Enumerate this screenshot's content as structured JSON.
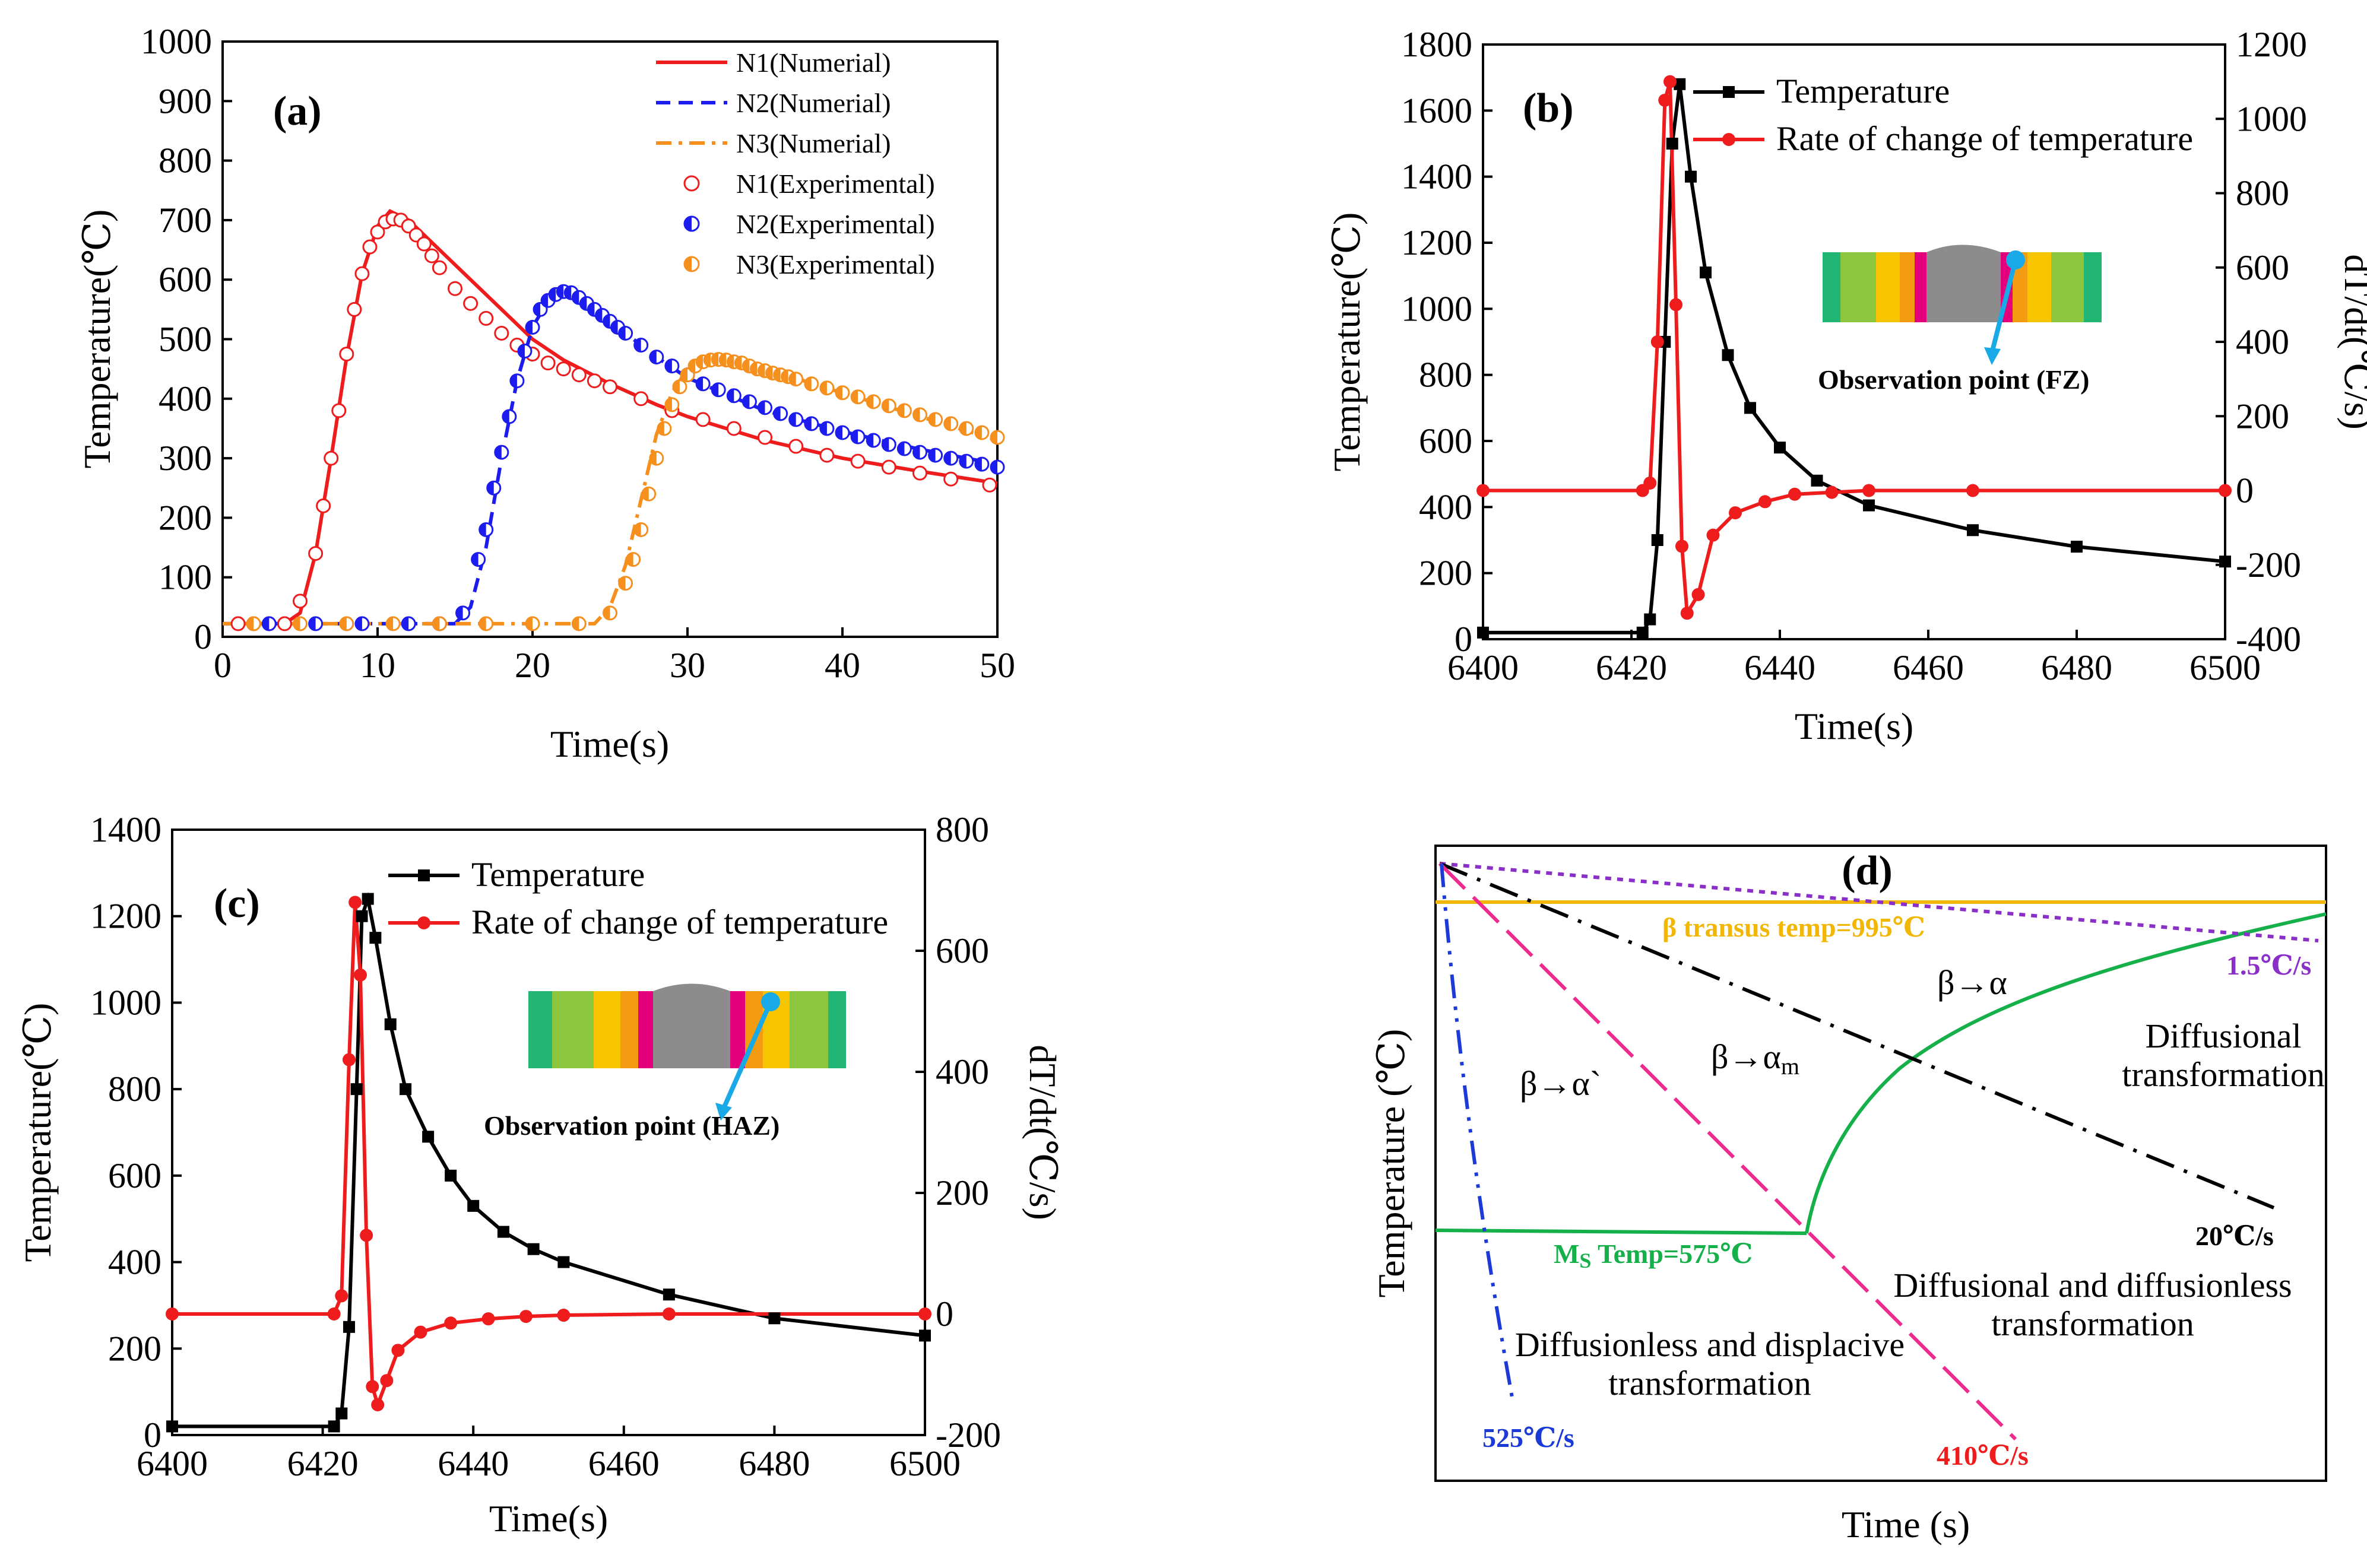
{
  "colors": {
    "n1": "#ee1c1c",
    "n2": "#1c1cee",
    "n3": "#f5901e",
    "black": "#000000",
    "red": "#ee1c1c",
    "transus": "#f2b705",
    "purple": "#8b2fc9",
    "magenta": "#ee2a8f",
    "blue": "#1c3bd6",
    "green": "#16b04a",
    "cyan": "#19a9e6"
  },
  "chart_data": [
    {
      "id": "a",
      "type": "line",
      "panel_label": "(a)",
      "xlabel": "Time(s)",
      "ylabel": "Temperature(℃)",
      "xlim": [
        0,
        50
      ],
      "ylim": [
        0,
        1000
      ],
      "xticks": [
        0,
        10,
        20,
        30,
        40,
        50
      ],
      "yticks": [
        0,
        100,
        200,
        300,
        400,
        500,
        600,
        700,
        800,
        900,
        1000
      ],
      "legend": [
        "N1(Numerial)",
        "N2(Numerial)",
        "N3(Numerial)",
        "N1(Experimental)",
        "N2(Experimental)",
        "N3(Experimental)"
      ],
      "series": [
        {
          "name": "N1(Numerial)",
          "style": "solid",
          "x": [
            0,
            4,
            5,
            6,
            7,
            8,
            9,
            10,
            10.8,
            12,
            14,
            16,
            18,
            20,
            22,
            25,
            28,
            30,
            35,
            40,
            45,
            50
          ],
          "y": [
            22,
            22,
            40,
            140,
            300,
            470,
            610,
            690,
            715,
            700,
            650,
            600,
            550,
            500,
            465,
            425,
            390,
            370,
            330,
            300,
            278,
            258
          ]
        },
        {
          "name": "N2(Numerial)",
          "style": "dashed",
          "x": [
            0,
            15,
            16,
            17,
            18,
            19,
            20,
            21,
            22,
            23,
            25,
            28,
            30,
            35,
            40,
            45,
            50
          ],
          "y": [
            22,
            22,
            50,
            150,
            300,
            430,
            520,
            565,
            580,
            570,
            530,
            470,
            435,
            380,
            345,
            315,
            290
          ]
        },
        {
          "name": "N3(Numerial)",
          "style": "dashdot",
          "x": [
            0,
            24,
            25,
            26,
            27,
            28,
            29,
            30,
            31,
            32,
            34,
            36,
            38,
            40,
            45,
            50
          ],
          "y": [
            22,
            22,
            50,
            120,
            230,
            340,
            410,
            450,
            465,
            470,
            460,
            445,
            425,
            410,
            370,
            330
          ]
        },
        {
          "name": "N1(Experimental)",
          "marker": "open-circle",
          "x": [
            1,
            2,
            3,
            4,
            5,
            6,
            6.5,
            7,
            7.5,
            8,
            8.5,
            9,
            9.5,
            10,
            10.5,
            11,
            11.5,
            12,
            12.5,
            13,
            13.5,
            14,
            15,
            16,
            17,
            18,
            19,
            20,
            21,
            22,
            23,
            24,
            25,
            27,
            29,
            31,
            33,
            35,
            37,
            39,
            41,
            43,
            45,
            47,
            49.5
          ],
          "y": [
            22,
            22,
            22,
            22,
            60,
            140,
            220,
            300,
            380,
            475,
            550,
            610,
            655,
            680,
            697,
            702,
            700,
            690,
            675,
            660,
            640,
            620,
            585,
            560,
            535,
            510,
            490,
            475,
            460,
            450,
            440,
            430,
            420,
            400,
            380,
            365,
            350,
            335,
            320,
            305,
            295,
            285,
            275,
            265,
            255
          ]
        },
        {
          "name": "N2(Experimental)",
          "marker": "half-circle",
          "x": [
            3,
            6,
            9,
            12,
            14,
            15.5,
            16.5,
            17,
            17.5,
            18,
            18.5,
            19,
            19.5,
            20,
            20.5,
            21,
            21.5,
            22,
            22.5,
            23,
            23.5,
            24,
            24.5,
            25,
            25.5,
            26,
            27,
            28,
            29,
            30,
            31,
            32,
            33,
            34,
            35,
            36,
            37,
            38,
            39,
            40,
            41,
            42,
            43,
            44,
            45,
            46,
            47,
            48,
            49,
            50
          ],
          "y": [
            22,
            22,
            22,
            22,
            22,
            40,
            130,
            180,
            250,
            310,
            370,
            430,
            480,
            520,
            550,
            565,
            575,
            580,
            578,
            570,
            560,
            550,
            540,
            530,
            520,
            510,
            490,
            470,
            455,
            440,
            425,
            415,
            405,
            395,
            385,
            375,
            365,
            358,
            350,
            343,
            336,
            330,
            323,
            316,
            310,
            305,
            300,
            295,
            290,
            285
          ]
        },
        {
          "name": "N3(Experimental)",
          "marker": "half-circle",
          "x": [
            2,
            5,
            8,
            11,
            14,
            17,
            20,
            23,
            25,
            26,
            26.5,
            27,
            27.5,
            28,
            28.5,
            29,
            29.5,
            30,
            30.5,
            31,
            31.5,
            32,
            32.5,
            33,
            33.5,
            34,
            34.5,
            35,
            35.5,
            36,
            36.5,
            37,
            38,
            39,
            40,
            41,
            42,
            43,
            44,
            45,
            46,
            47,
            48,
            49,
            50
          ],
          "y": [
            22,
            22,
            22,
            22,
            22,
            22,
            22,
            22,
            40,
            90,
            130,
            180,
            240,
            300,
            350,
            390,
            420,
            440,
            455,
            462,
            465,
            466,
            465,
            462,
            460,
            455,
            450,
            447,
            443,
            440,
            437,
            433,
            425,
            418,
            410,
            403,
            395,
            388,
            380,
            373,
            365,
            358,
            350,
            343,
            335
          ]
        }
      ]
    },
    {
      "id": "b",
      "type": "line",
      "panel_label": "(b)",
      "xlabel": "Time(s)",
      "ylabel": "Temperature(℃)",
      "y2label": "dT/dt(℃/s)",
      "xlim": [
        6400,
        6500
      ],
      "ylim": [
        0,
        1800
      ],
      "y2lim": [
        -400,
        1200
      ],
      "xticks": [
        6400,
        6420,
        6440,
        6460,
        6480,
        6500
      ],
      "yticks": [
        0,
        200,
        400,
        600,
        800,
        1000,
        1200,
        1400,
        1600,
        1800
      ],
      "y2ticks": [
        -400,
        -200,
        0,
        200,
        400,
        600,
        800,
        1000,
        1200
      ],
      "legend": [
        "Temperature",
        "Rate of change of temperature"
      ],
      "inset_label": "Observation point (FZ)",
      "series": [
        {
          "name": "Temperature",
          "axis": "left",
          "marker": "square",
          "x": [
            6400,
            6421.5,
            6422.5,
            6423.5,
            6424.5,
            6425.5,
            6426.5,
            6428,
            6430,
            6433,
            6436,
            6440,
            6445,
            6452,
            6466,
            6480,
            6500
          ],
          "y": [
            20,
            20,
            60,
            300,
            900,
            1500,
            1680,
            1400,
            1110,
            860,
            700,
            580,
            480,
            405,
            330,
            280,
            235
          ]
        },
        {
          "name": "Rate of change of temperature",
          "axis": "right",
          "marker": "circle",
          "x": [
            6400,
            6421.5,
            6422.5,
            6423.5,
            6424.5,
            6425.2,
            6426,
            6426.8,
            6427.5,
            6429,
            6431,
            6434,
            6438,
            6442,
            6447,
            6452,
            6466,
            6500
          ],
          "y": [
            0,
            0,
            20,
            400,
            1050,
            1100,
            500,
            -150,
            -330,
            -280,
            -120,
            -60,
            -30,
            -10,
            -5,
            0,
            0,
            0
          ]
        }
      ]
    },
    {
      "id": "c",
      "type": "line",
      "panel_label": "(c)",
      "xlabel": "Time(s)",
      "ylabel": "Temperature(℃)",
      "y2label": "dT/dt(℃/s)",
      "xlim": [
        6400,
        6500
      ],
      "ylim": [
        0,
        1400
      ],
      "y2lim": [
        -200,
        800
      ],
      "xticks": [
        6400,
        6420,
        6440,
        6460,
        6480,
        6500
      ],
      "yticks": [
        0,
        200,
        400,
        600,
        800,
        1000,
        1200,
        1400
      ],
      "y2ticks": [
        -200,
        0,
        200,
        400,
        600,
        800
      ],
      "legend": [
        "Temperature",
        "Rate of change of temperature"
      ],
      "inset_label": "Observation point (HAZ)",
      "series": [
        {
          "name": "Temperature",
          "axis": "left",
          "marker": "square",
          "x": [
            6400,
            6421.5,
            6422.5,
            6423.5,
            6424.5,
            6425.2,
            6426,
            6427,
            6429,
            6431,
            6434,
            6437,
            6440,
            6444,
            6448,
            6452,
            6466,
            6480,
            6500
          ],
          "y": [
            20,
            20,
            50,
            250,
            800,
            1200,
            1240,
            1150,
            950,
            800,
            690,
            600,
            530,
            470,
            430,
            400,
            325,
            270,
            230
          ]
        },
        {
          "name": "Rate of change of temperature",
          "axis": "right",
          "marker": "circle",
          "x": [
            6400,
            6421.5,
            6422.5,
            6423.5,
            6424.3,
            6425,
            6425.8,
            6426.6,
            6427.3,
            6428.5,
            6430,
            6433,
            6437,
            6442,
            6447,
            6452,
            6466,
            6500
          ],
          "y": [
            0,
            0,
            30,
            420,
            680,
            560,
            130,
            -120,
            -150,
            -110,
            -60,
            -30,
            -15,
            -8,
            -4,
            -2,
            0,
            0
          ]
        }
      ]
    },
    {
      "id": "d",
      "type": "line",
      "panel_label": "(d)",
      "xlabel": "Time (s)",
      "ylabel": "Temperature (℃)",
      "transus_label": "β transus temp=995℃",
      "ms_label_main": "M",
      "ms_label_sub": "S",
      "ms_label_rest": " Temp=575℃",
      "rate_labels": [
        "525℃/s",
        "410℃/s",
        "20℃/s",
        "1.5℃/s"
      ],
      "phase_labels": {
        "beta_alpha_prime": "β→α`",
        "beta_alpha_m_main": "β→α",
        "beta_alpha_m_sub": "m",
        "beta_alpha": "β→α"
      },
      "region_labels": {
        "diffusional_1": "Diffusional",
        "diffusional_2": "transformation",
        "mixed_1": "Diffusional and diffusionless",
        "mixed_2": "transformation",
        "displacive_1": "Diffusionless and displacive",
        "displacive_2": "transformation"
      }
    }
  ]
}
